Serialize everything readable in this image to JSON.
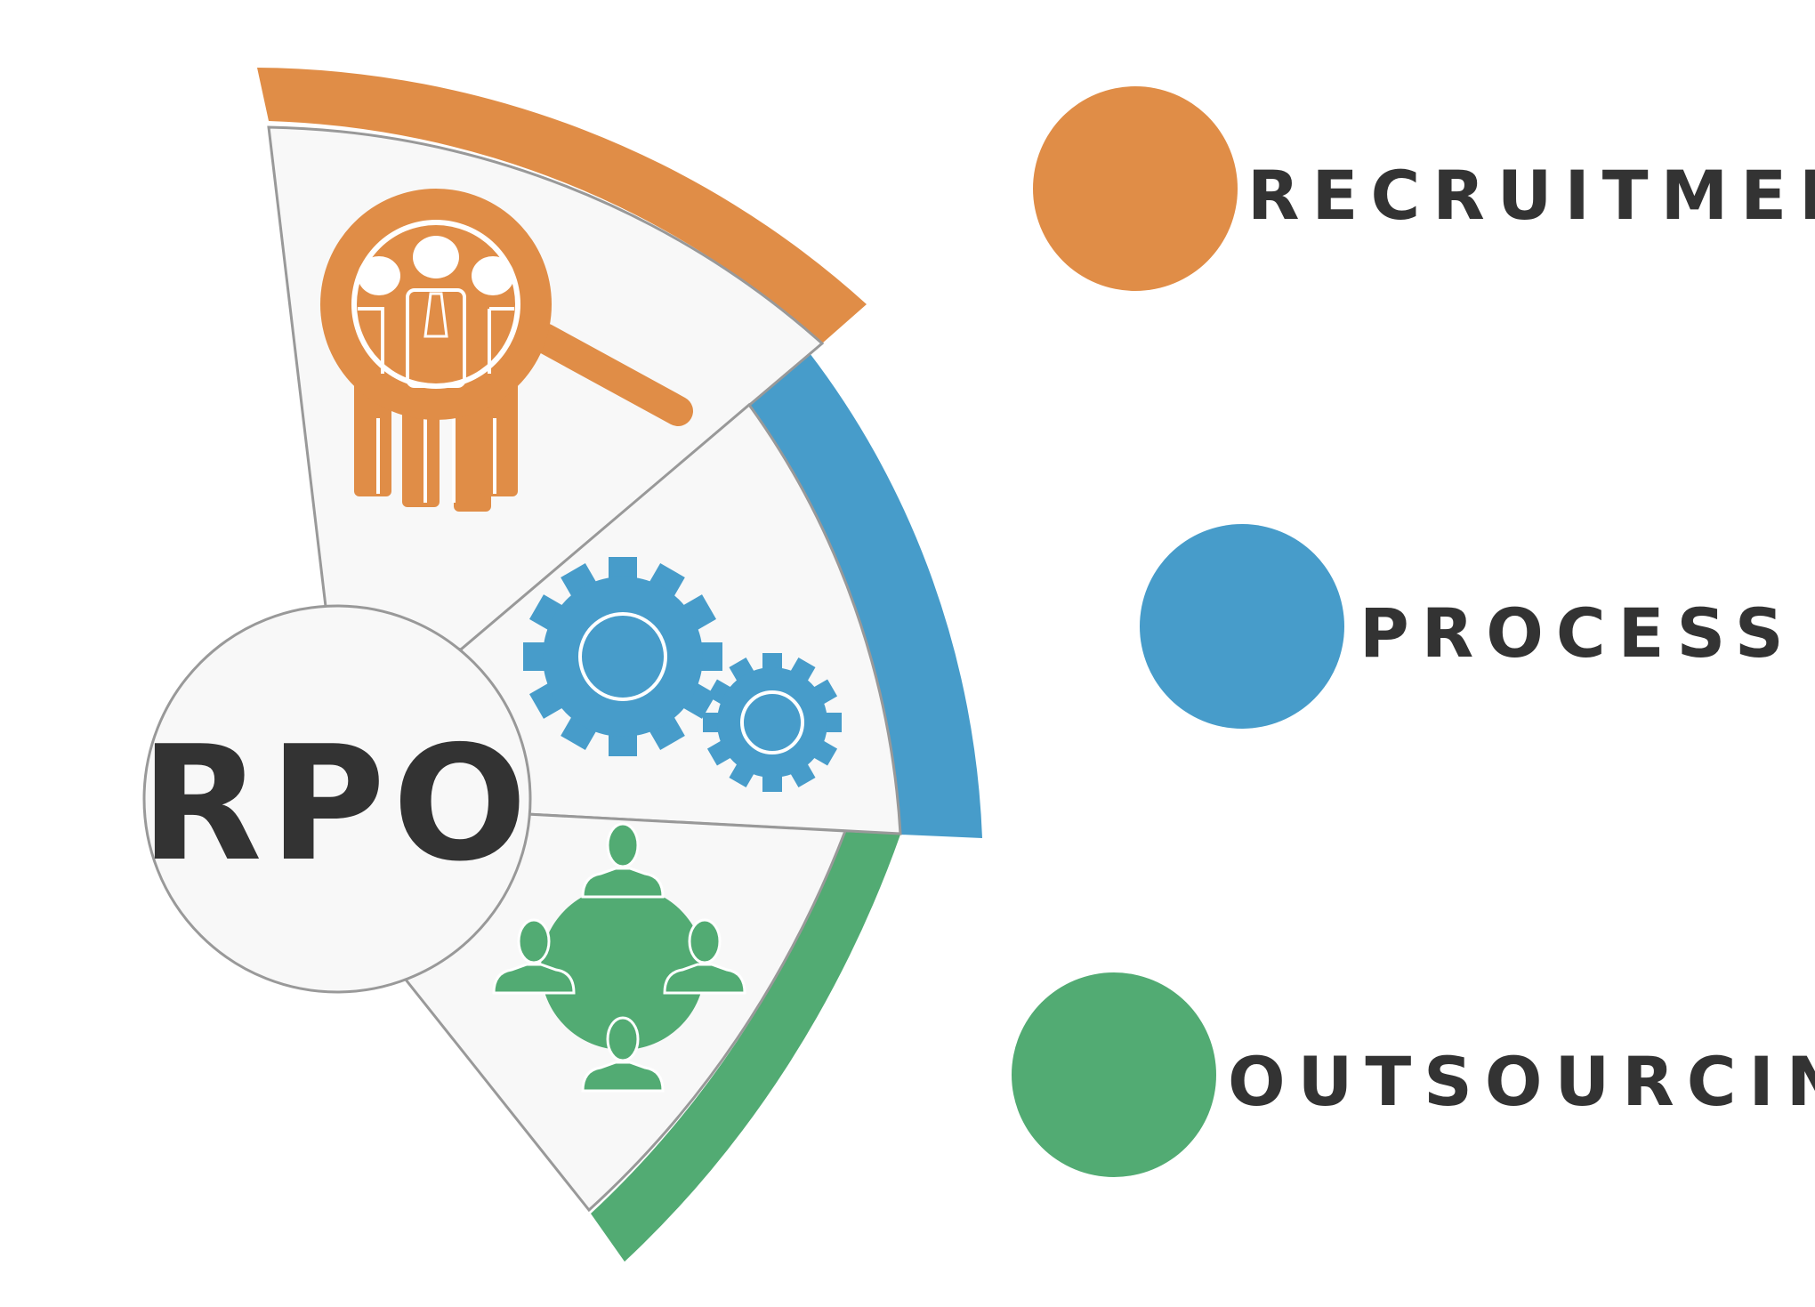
{
  "center_label": "RPO",
  "legend": [
    {
      "label": "RECRUITMENT",
      "color": "#e08d47",
      "icon": "recruitment-search-icon"
    },
    {
      "label": "PROCESS",
      "color": "#479cca",
      "icon": "gears-icon"
    },
    {
      "label": "OUTSOURCING",
      "color": "#52ab73",
      "icon": "network-people-icon"
    }
  ],
  "colors": {
    "text": "#333333",
    "panel_fill": "#f8f8f8",
    "panel_stroke": "#999999"
  }
}
